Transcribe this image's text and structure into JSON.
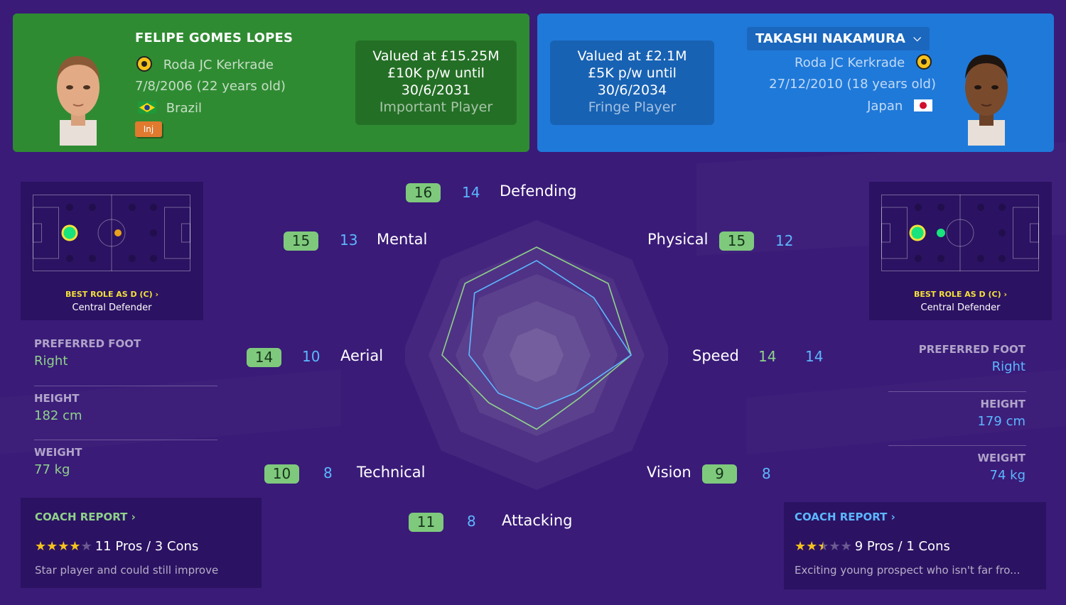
{
  "left_player": {
    "name": "FELIPE GOMES LOPES",
    "club": "Roda JC Kerkrade",
    "dob_age": "7/8/2006 (22 years old)",
    "nationality": "Brazil",
    "status_badge": "Inj",
    "value": "Valued at £15.25M",
    "wage": "£10K p/w until",
    "contract_end": "30/6/2031",
    "squad_role": "Important Player",
    "best_role": "BEST ROLE AS D (C)",
    "role_name": "Central Defender",
    "preferred_foot_label": "PREFERRED FOOT",
    "preferred_foot": "Right",
    "height_label": "HEIGHT",
    "height": "182 cm",
    "weight_label": "WEIGHT",
    "weight": "77 kg",
    "coach_report_label": "COACH REPORT",
    "coach_stars": 4,
    "coach_stars_max": 5,
    "coach_pros_cons": "11 Pros / 3 Cons",
    "coach_summary": "Star player and could still improve"
  },
  "right_player": {
    "name": "TAKASHI NAKAMURA",
    "club": "Roda JC Kerkrade",
    "dob_age": "27/12/2010 (18 years old)",
    "nationality": "Japan",
    "value": "Valued at £2.1M",
    "wage": "£5K p/w until",
    "contract_end": "30/6/2034",
    "squad_role": "Fringe Player",
    "best_role": "BEST ROLE AS D (C)",
    "role_name": "Central Defender",
    "preferred_foot_label": "PREFERRED FOOT",
    "preferred_foot": "Right",
    "height_label": "HEIGHT",
    "height": "179 cm",
    "weight_label": "WEIGHT",
    "weight": "74 kg",
    "coach_report_label": "COACH REPORT",
    "coach_stars": 2.5,
    "coach_stars_max": 5,
    "coach_pros_cons": "9 Pros / 1 Cons",
    "coach_summary": "Exciting young prospect who isn't far fro..."
  },
  "attributes": [
    {
      "label": "Defending",
      "left": 16,
      "right": 14
    },
    {
      "label": "Physical",
      "left": 15,
      "right": 12
    },
    {
      "label": "Speed",
      "left": 14,
      "right": 14
    },
    {
      "label": "Vision",
      "left": 9,
      "right": 8
    },
    {
      "label": "Attacking",
      "left": 11,
      "right": 8
    },
    {
      "label": "Technical",
      "left": 10,
      "right": 8
    },
    {
      "label": "Aerial",
      "left": 14,
      "right": 10
    },
    {
      "label": "Mental",
      "left": 15,
      "right": 13
    }
  ],
  "colors": {
    "background": "#3a1b78",
    "left_panel": "#2f8b32",
    "right_panel": "#1f79d9",
    "left_series": "#8fd18a",
    "right_series": "#5cb7ff",
    "badge": "#7fc97d",
    "best_role": "#f4e03b",
    "star": "#f4c21d"
  },
  "icons": {
    "club_crest": "roda-jc-crest-icon",
    "flag_left": "brazil-flag-icon",
    "flag_right": "japan-flag-icon",
    "dropdown": "chevron-down-icon",
    "chevron_right": "chevron-right-icon"
  },
  "chart_data": {
    "type": "radar",
    "axes": [
      "Defending",
      "Physical",
      "Speed",
      "Vision",
      "Attacking",
      "Technical",
      "Aerial",
      "Mental"
    ],
    "series": [
      {
        "name": "FELIPE GOMES LOPES",
        "values": [
          16,
          15,
          14,
          9,
          11,
          10,
          14,
          15
        ]
      },
      {
        "name": "TAKASHI NAKAMURA",
        "values": [
          14,
          12,
          14,
          8,
          8,
          8,
          10,
          13
        ]
      }
    ],
    "max": 20
  }
}
